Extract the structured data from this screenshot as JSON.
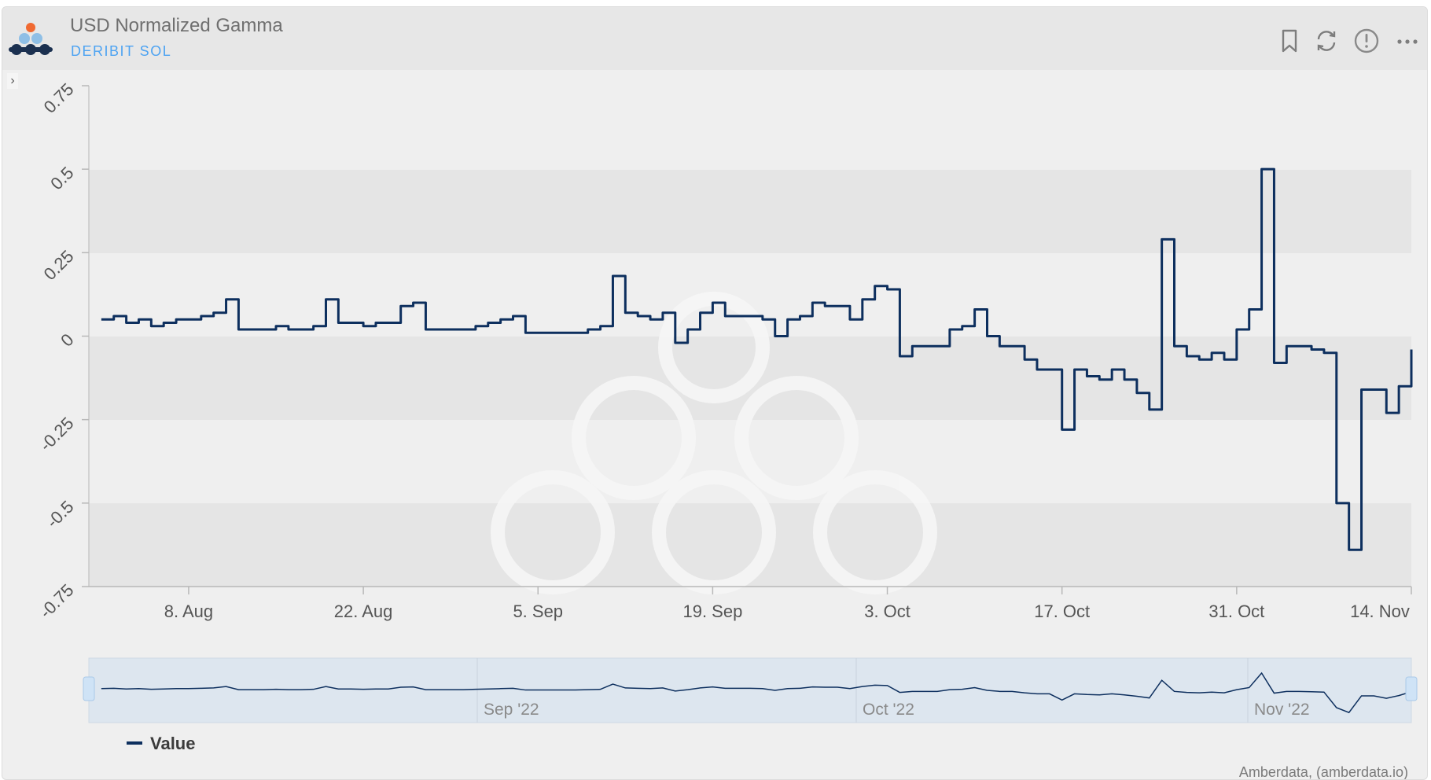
{
  "header": {
    "title": "USD Normalized Gamma",
    "subtitle": "DERIBIT SOL",
    "icons": [
      "bookmark-icon",
      "refresh-icon",
      "info-icon",
      "more-icon"
    ]
  },
  "credit": "Amberdata, (amberdata.io)",
  "colors": {
    "line": "#0d2f5e",
    "subtitle": "#4da3f2",
    "band": "#e5e5e5",
    "navigator": "#dde6ef"
  },
  "chart_data": {
    "type": "line",
    "title": "USD Normalized Gamma",
    "subtitle": "DERIBIT SOL",
    "ylim": [
      -0.75,
      0.75
    ],
    "y_ticks": [
      "-0.75",
      "-0.5",
      "-0.25",
      "0",
      "0.25",
      "0.5",
      "0.75"
    ],
    "x_ticks": [
      "8. Aug",
      "22. Aug",
      "5. Sep",
      "19. Sep",
      "3. Oct",
      "17. Oct",
      "31. Oct",
      "14. Nov"
    ],
    "x_range": [
      "2022-07-31",
      "2022-11-14"
    ],
    "navigator_ticks": [
      "Sep '22",
      "Oct '22",
      "Nov '22"
    ],
    "legend": "top-left below navigator",
    "series": [
      {
        "name": "Value",
        "x": [
          "2022-08-01",
          "2022-08-02",
          "2022-08-03",
          "2022-08-04",
          "2022-08-05",
          "2022-08-06",
          "2022-08-07",
          "2022-08-08",
          "2022-08-09",
          "2022-08-10",
          "2022-08-11",
          "2022-08-12",
          "2022-08-13",
          "2022-08-14",
          "2022-08-15",
          "2022-08-16",
          "2022-08-17",
          "2022-08-18",
          "2022-08-19",
          "2022-08-20",
          "2022-08-21",
          "2022-08-22",
          "2022-08-23",
          "2022-08-24",
          "2022-08-25",
          "2022-08-26",
          "2022-08-27",
          "2022-08-28",
          "2022-08-29",
          "2022-08-30",
          "2022-08-31",
          "2022-09-01",
          "2022-09-02",
          "2022-09-03",
          "2022-09-04",
          "2022-09-05",
          "2022-09-06",
          "2022-09-07",
          "2022-09-08",
          "2022-09-09",
          "2022-09-10",
          "2022-09-11",
          "2022-09-12",
          "2022-09-13",
          "2022-09-14",
          "2022-09-15",
          "2022-09-16",
          "2022-09-17",
          "2022-09-18",
          "2022-09-19",
          "2022-09-20",
          "2022-09-21",
          "2022-09-22",
          "2022-09-23",
          "2022-09-24",
          "2022-09-25",
          "2022-09-26",
          "2022-09-27",
          "2022-09-28",
          "2022-09-29",
          "2022-09-30",
          "2022-10-01",
          "2022-10-02",
          "2022-10-03",
          "2022-10-04",
          "2022-10-05",
          "2022-10-06",
          "2022-10-07",
          "2022-10-08",
          "2022-10-09",
          "2022-10-10",
          "2022-10-11",
          "2022-10-12",
          "2022-10-13",
          "2022-10-14",
          "2022-10-15",
          "2022-10-16",
          "2022-10-17",
          "2022-10-18",
          "2022-10-19",
          "2022-10-20",
          "2022-10-21",
          "2022-10-22",
          "2022-10-23",
          "2022-10-24",
          "2022-10-25",
          "2022-10-26",
          "2022-10-27",
          "2022-10-28",
          "2022-10-29",
          "2022-10-30",
          "2022-10-31",
          "2022-11-01",
          "2022-11-02",
          "2022-11-03",
          "2022-11-04",
          "2022-11-05",
          "2022-11-06",
          "2022-11-07",
          "2022-11-08",
          "2022-11-09",
          "2022-11-10",
          "2022-11-11",
          "2022-11-12",
          "2022-11-13",
          "2022-11-14"
        ],
        "values": [
          0.05,
          0.06,
          0.04,
          0.05,
          0.03,
          0.04,
          0.05,
          0.05,
          0.06,
          0.07,
          0.11,
          0.02,
          0.02,
          0.02,
          0.03,
          0.02,
          0.02,
          0.03,
          0.11,
          0.04,
          0.04,
          0.03,
          0.04,
          0.04,
          0.09,
          0.1,
          0.02,
          0.02,
          0.02,
          0.02,
          0.03,
          0.04,
          0.05,
          0.06,
          0.01,
          0.01,
          0.01,
          0.01,
          0.01,
          0.02,
          0.03,
          0.18,
          0.07,
          0.06,
          0.05,
          0.07,
          -0.02,
          0.02,
          0.07,
          0.1,
          0.06,
          0.06,
          0.06,
          0.05,
          0.0,
          0.05,
          0.06,
          0.1,
          0.09,
          0.09,
          0.05,
          0.11,
          0.15,
          0.14,
          -0.06,
          -0.03,
          -0.03,
          -0.03,
          0.02,
          0.03,
          0.08,
          0.0,
          -0.03,
          -0.03,
          -0.07,
          -0.1,
          -0.1,
          -0.28,
          -0.1,
          -0.12,
          -0.13,
          -0.1,
          -0.13,
          -0.17,
          -0.22,
          0.29,
          -0.03,
          -0.06,
          -0.07,
          -0.05,
          -0.07,
          0.02,
          0.08,
          0.5,
          -0.08,
          -0.03,
          -0.03,
          -0.04,
          -0.05,
          -0.5,
          -0.64,
          -0.16,
          -0.16,
          -0.23,
          -0.15,
          -0.04
        ]
      }
    ]
  }
}
